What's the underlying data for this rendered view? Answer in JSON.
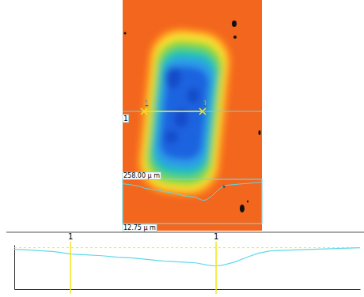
{
  "chart_data": {
    "type": "line",
    "x": [
      0,
      12.8,
      30.4,
      42,
      53.7,
      65.4,
      77,
      88.7,
      100.4,
      112,
      123.7,
      135.4,
      144.2,
      150,
      155.8,
      164.6,
      173.4,
      182.1,
      190.9,
      205.5,
      223,
      240.5,
      258
    ],
    "values": [
      -1.1,
      -1.7,
      -2.8,
      -4.4,
      -5.0,
      -5.6,
      -6.7,
      -7.2,
      -8.3,
      -9.4,
      -10.0,
      -10.6,
      -12.2,
      -12.8,
      -12.2,
      -10.0,
      -6.7,
      -3.9,
      -2.2,
      -1.7,
      -1.1,
      -0.6,
      0
    ],
    "color": "#5fd9ea",
    "xlim": [
      0,
      258
    ],
    "ylim": [
      -29,
      2
    ],
    "tick_labels": false,
    "reference_line": 0,
    "cursors": [
      {
        "label": "1",
        "x": 42
      },
      {
        "label": "1",
        "x": 150.6
      }
    ]
  },
  "surface_map": {
    "profile_label": "1",
    "width_label": "258.00 μ m",
    "depth_label": "12.75 μ m"
  }
}
